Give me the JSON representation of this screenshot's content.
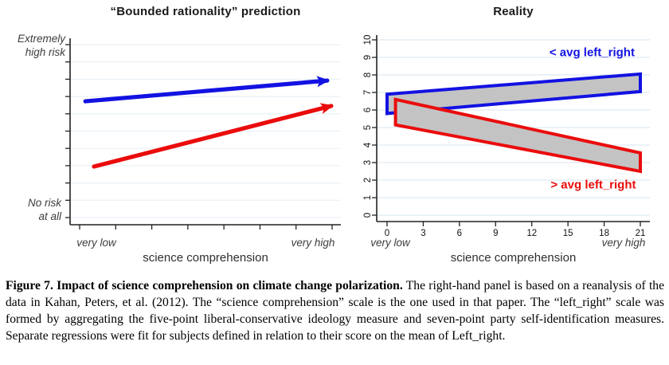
{
  "caption": {
    "bold": "Figure 7. Impact of science comprehension on climate change polarization.",
    "rest": " The right-hand panel is based on a reanalysis of the data in Kahan, Peters, et al. (2012). The “science comprehension” scale is the one used in that paper. The “left_right” scale was formed by aggregating the five-point liberal-conservative ideology measure and seven-point party self-identification measures. Separate regressions were fit for subjects defined in relation to their score on the mean of Left_right."
  },
  "colors": {
    "blue": "#1212e2",
    "red": "#ea0c0c",
    "band_fill": "#c3c3c3",
    "grid_left": "#e9f0f6",
    "grid_right": "#dfe9f2",
    "axis": "#222222",
    "tick_text": "#111111"
  },
  "chart_data": [
    {
      "type": "line",
      "panel": "left",
      "title": "“Bounded rationality” prediction",
      "xlabel": "science comprehension",
      "x_end_labels": {
        "low": "very low",
        "high": "very high"
      },
      "y_end_labels": {
        "top1": "Extremely",
        "top2": "high risk",
        "bot1": "No risk",
        "bot2": "at all"
      },
      "xlim": [
        0,
        1
      ],
      "ylim": [
        0,
        1
      ],
      "grid": true,
      "series": [
        {
          "name": "< avg left_right",
          "color": "blue",
          "arrow": true,
          "x": [
            0.057,
            0.958
          ],
          "y": [
            0.662,
            0.773
          ]
        },
        {
          "name": "> avg left_right",
          "color": "red",
          "arrow": true,
          "x": [
            0.089,
            0.973
          ],
          "y": [
            0.312,
            0.637
          ]
        }
      ]
    },
    {
      "type": "area-band",
      "panel": "right",
      "title": "Reality",
      "xlabel": "science comprehension",
      "x_end_labels": {
        "low": "very low",
        "high": "very high"
      },
      "x_ticks": [
        0,
        3,
        6,
        9,
        12,
        15,
        18,
        21
      ],
      "y_ticks": [
        0,
        1,
        2,
        3,
        4,
        5,
        6,
        7,
        8,
        9,
        10
      ],
      "xlim": [
        -0.9,
        21.8
      ],
      "ylim": [
        0,
        10.3
      ],
      "grid": true,
      "bands": [
        {
          "name": "< avg left_right",
          "color": "blue",
          "x": [
            0,
            21
          ],
          "upper": [
            6.9,
            8.05
          ],
          "lower": [
            5.8,
            7.05
          ],
          "label_at": [
            17,
            9.3
          ]
        },
        {
          "name": "> avg left_right",
          "color": "red",
          "x": [
            0.7,
            21
          ],
          "upper": [
            6.6,
            3.55
          ],
          "lower": [
            5.15,
            2.5
          ],
          "label_at": [
            17.1,
            1.75
          ]
        }
      ]
    }
  ]
}
